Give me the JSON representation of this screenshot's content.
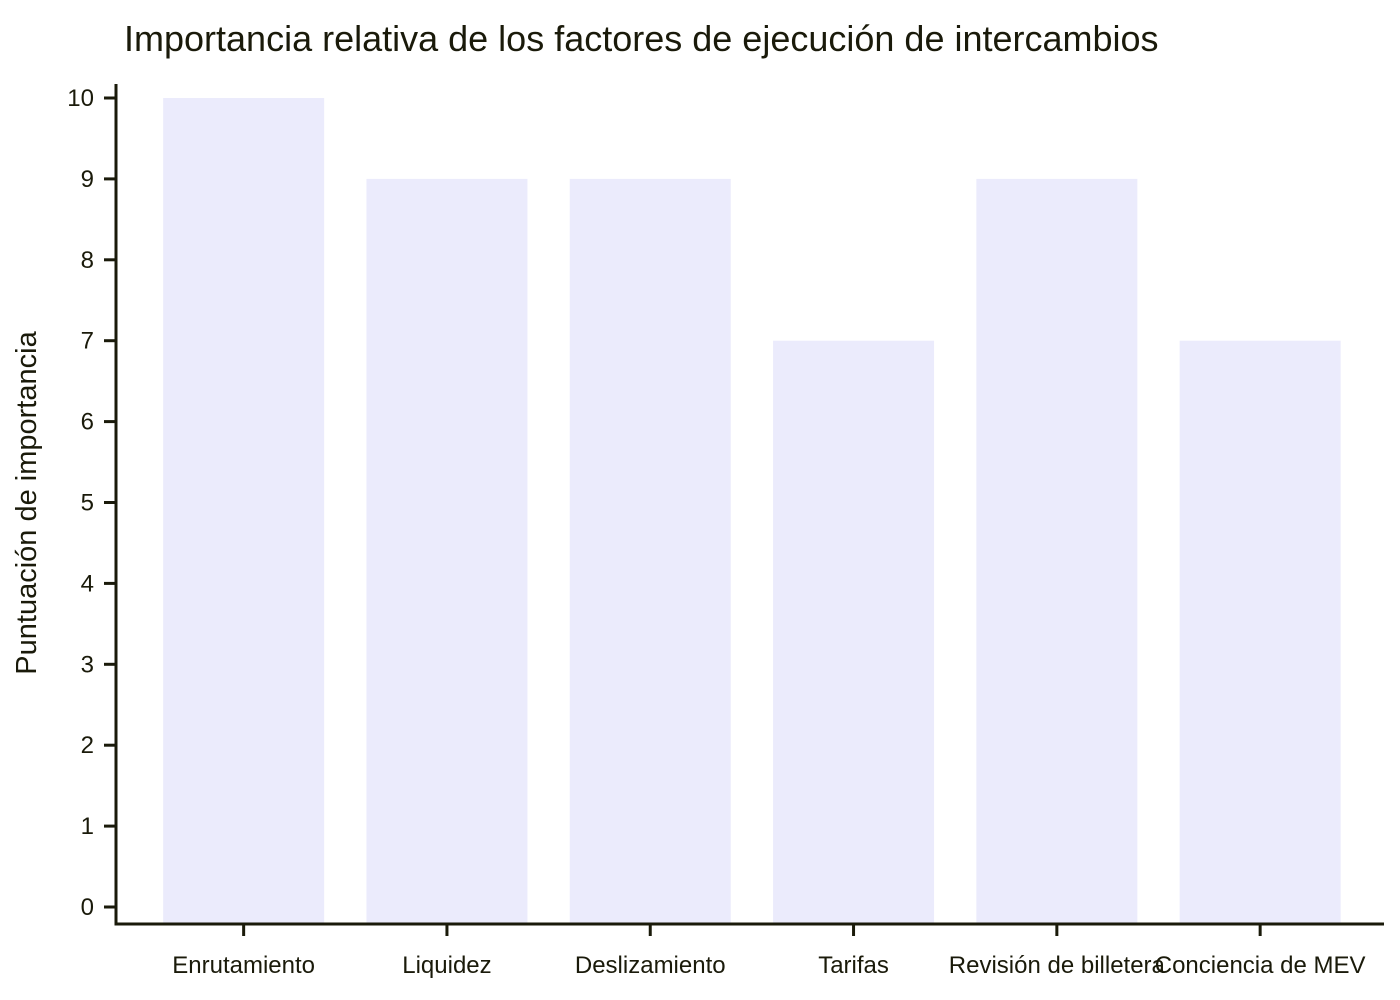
{
  "chart_data": {
    "type": "bar",
    "title": "Importancia relativa de los factores de ejecución de intercambios",
    "xlabel": "",
    "ylabel": "Puntuación de importancia",
    "categories": [
      "Enrutamiento",
      "Liquidez",
      "Deslizamiento",
      "Tarifas",
      "Revisión de billetera",
      "Conciencia de MEV"
    ],
    "values": [
      10,
      9,
      9,
      7,
      9,
      7
    ],
    "ylim": [
      0,
      10
    ],
    "yticks": [
      0,
      1,
      2,
      3,
      4,
      5,
      6,
      7,
      8,
      9,
      10
    ],
    "grid": false,
    "legend": "none",
    "bar_color": "#ebebfc",
    "axis_color": "#1a1a0a"
  }
}
